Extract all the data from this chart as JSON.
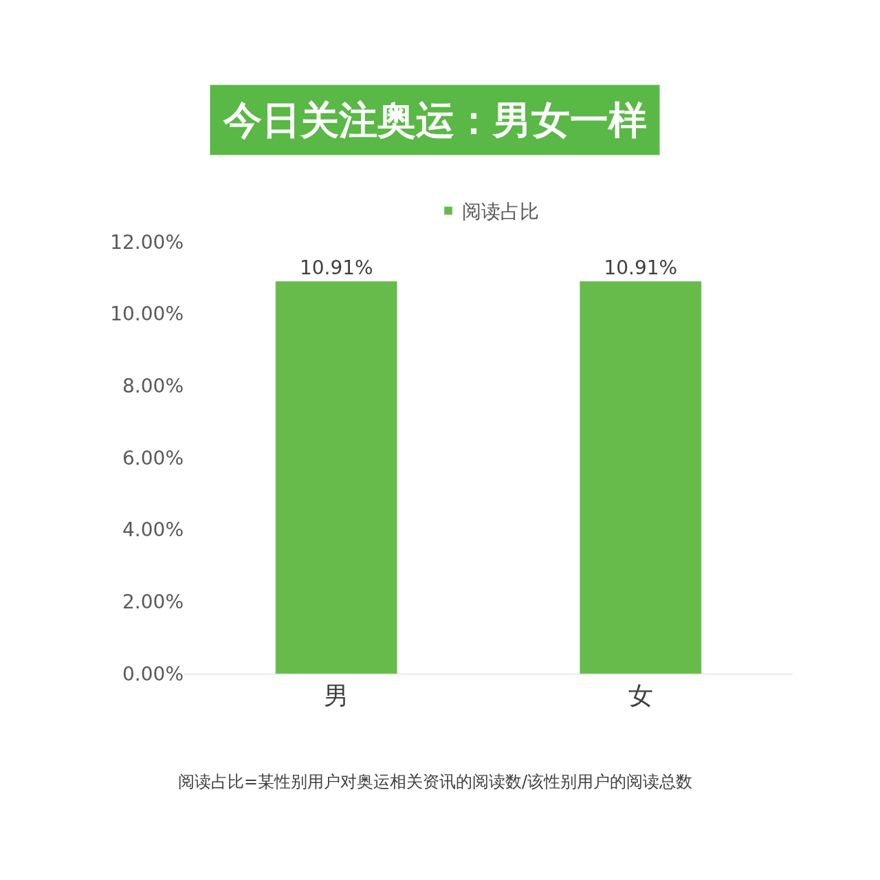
{
  "chart_data": {
    "type": "bar",
    "title": "今日关注奥运：男女一样",
    "categories": [
      "男",
      "女"
    ],
    "series": [
      {
        "name": "阅读占比",
        "color": "#66bb4a",
        "values": [
          10.91,
          10.91
        ],
        "value_labels": [
          "10.91%",
          "10.91%"
        ]
      }
    ],
    "ylim": [
      0,
      12
    ],
    "yticks": [
      {
        "value": 0,
        "label": "0.00%"
      },
      {
        "value": 2,
        "label": "2.00%"
      },
      {
        "value": 4,
        "label": "4.00%"
      },
      {
        "value": 6,
        "label": "6.00%"
      },
      {
        "value": 8,
        "label": "8.00%"
      },
      {
        "value": 10,
        "label": "10.00%"
      },
      {
        "value": 12,
        "label": "12.00%"
      }
    ],
    "legend": "top",
    "annotations": [
      "阅读占比=某性别用户对奥运相关资讯的阅读数/该性别用户的阅读总数"
    ]
  }
}
